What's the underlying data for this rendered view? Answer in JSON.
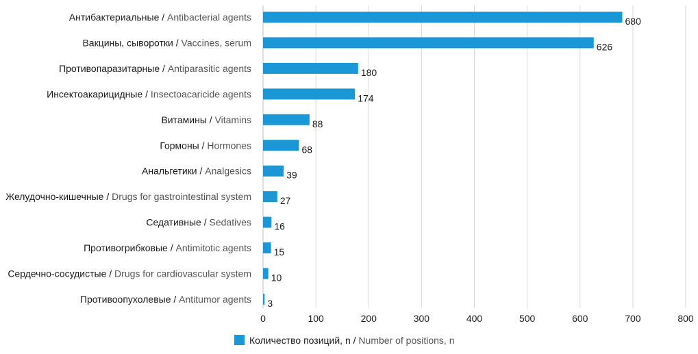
{
  "chart_data": {
    "type": "bar",
    "orientation": "horizontal",
    "categories": [
      {
        "ru": "Антибактериальные",
        "en": "Antibacterial agents"
      },
      {
        "ru": "Вакцины, сыворотки",
        "en": "Vaccines, serum"
      },
      {
        "ru": "Противопаразитарные",
        "en": "Antiparasitic agents"
      },
      {
        "ru": "Инсектоакарицидные",
        "en": "Insectoacaricide agents"
      },
      {
        "ru": "Витамины",
        "en": "Vitamins"
      },
      {
        "ru": "Гормоны",
        "en": "Hormones"
      },
      {
        "ru": "Анальгетики",
        "en": "Analgesics"
      },
      {
        "ru": "Желудочно-кишечные",
        "en": "Drugs for gastrointestinal system"
      },
      {
        "ru": "Седативные",
        "en": "Sedatives"
      },
      {
        "ru": "Противогрибковые",
        "en": "Antimitotic agents"
      },
      {
        "ru": "Сердечно-сосудистые",
        "en": "Drugs for cardiovascular system"
      },
      {
        "ru": "Противоопухолевые",
        "en": "Antitumor agents"
      }
    ],
    "series": [
      {
        "name": {
          "ru": "Количество позиций, n",
          "en": "Number of positions, n"
        },
        "values": [
          680,
          626,
          180,
          174,
          88,
          68,
          39,
          27,
          16,
          15,
          10,
          3
        ]
      }
    ],
    "xlim": [
      0,
      800
    ],
    "xticks": [
      0,
      100,
      200,
      300,
      400,
      500,
      600,
      700,
      800
    ],
    "grid": "vertical",
    "legend_position": "bottom-center",
    "bar_color": "#1a97d4",
    "grid_color": "#d9d9d9"
  }
}
